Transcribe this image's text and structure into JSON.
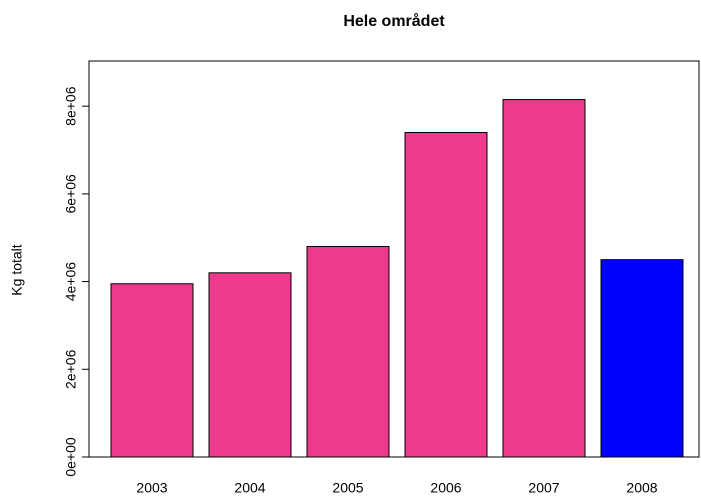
{
  "chart_data": {
    "type": "bar",
    "title": "Hele området",
    "ylabel": "Kg totalt",
    "categories": [
      "2003",
      "2004",
      "2005",
      "2006",
      "2007",
      "2008"
    ],
    "values": [
      3950000,
      4200000,
      4800000,
      7400000,
      8150000,
      4500000
    ],
    "colors": [
      "#ee3a8c",
      "#ee3a8c",
      "#ee3a8c",
      "#ee3a8c",
      "#ee3a8c",
      "#0000ff"
    ],
    "ylim": [
      0,
      9030000
    ],
    "yticks": [
      {
        "value": 0,
        "label": "0e+00"
      },
      {
        "value": 2000000,
        "label": "2e+06"
      },
      {
        "value": 4000000,
        "label": "4e+06"
      },
      {
        "value": 6000000,
        "label": "6e+06"
      },
      {
        "value": 8000000,
        "label": "8e+06"
      }
    ]
  }
}
